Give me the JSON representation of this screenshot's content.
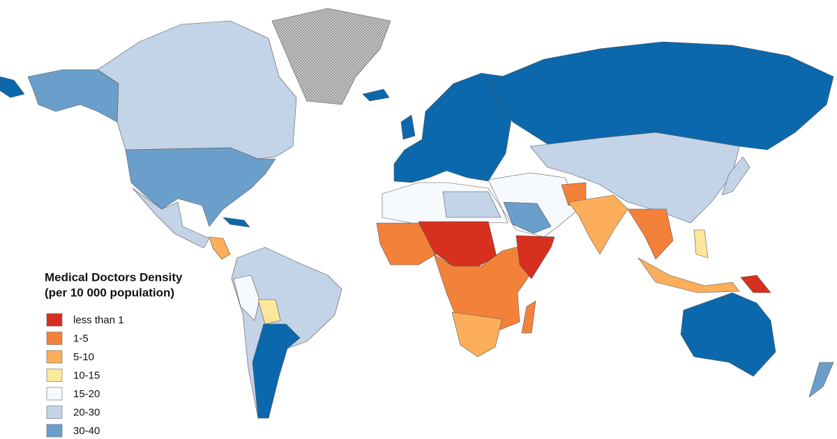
{
  "legend": {
    "title": [
      "Medical Doctors Density",
      "(per 10 000 population)"
    ],
    "items": [
      {
        "label": "less than 1",
        "color": "#d7301f"
      },
      {
        "label": "1-5",
        "color": "#f4813a"
      },
      {
        "label": "5-10",
        "color": "#fdae5a"
      },
      {
        "label": "10-15",
        "color": "#fde79a"
      },
      {
        "label": "15-20",
        "color": "#f7fafd"
      },
      {
        "label": "20-30",
        "color": "#c3d3e8"
      },
      {
        "label": "30-40",
        "color": "#6b9fcb"
      },
      {
        "label": null,
        "color": "#0b68ac"
      }
    ]
  }
}
